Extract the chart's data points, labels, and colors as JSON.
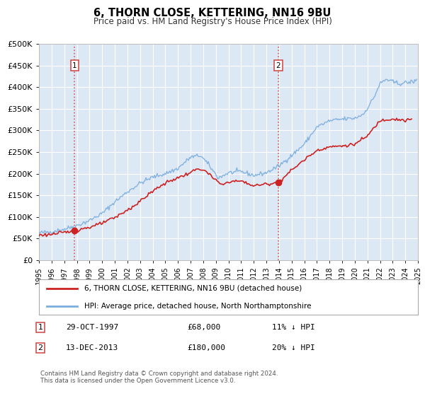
{
  "title": "6, THORN CLOSE, KETTERING, NN16 9BU",
  "subtitle": "Price paid vs. HM Land Registry's House Price Index (HPI)",
  "legend_line1": "6, THORN CLOSE, KETTERING, NN16 9BU (detached house)",
  "legend_line2": "HPI: Average price, detached house, North Northamptonshire",
  "annotation1_label": "1",
  "annotation1_date": "29-OCT-1997",
  "annotation1_price": "£68,000",
  "annotation1_hpi": "11% ↓ HPI",
  "annotation2_label": "2",
  "annotation2_date": "13-DEC-2013",
  "annotation2_price": "£180,000",
  "annotation2_hpi": "20% ↓ HPI",
  "copyright": "Contains HM Land Registry data © Crown copyright and database right 2024.\nThis data is licensed under the Open Government Licence v3.0.",
  "hpi_color": "#7aadde",
  "price_color": "#cc2222",
  "vline_color": "#cc4444",
  "dot_color": "#cc2222",
  "plot_bg_color": "#dde8f5",
  "grid_color": "#ffffff",
  "ylim_min": 0,
  "ylim_max": 500000,
  "xmin_year": 1995,
  "xmax_year": 2025,
  "transaction1_year": 1997.83,
  "transaction1_value": 68000,
  "transaction2_year": 2013.95,
  "transaction2_value": 180000,
  "yticks": [
    0,
    50000,
    100000,
    150000,
    200000,
    250000,
    300000,
    350000,
    400000,
    450000,
    500000
  ],
  "xticks": [
    1995,
    1996,
    1997,
    1998,
    1999,
    2000,
    2001,
    2002,
    2003,
    2004,
    2005,
    2006,
    2007,
    2008,
    2009,
    2010,
    2011,
    2012,
    2013,
    2014,
    2015,
    2016,
    2017,
    2018,
    2019,
    2020,
    2021,
    2022,
    2023,
    2024,
    2025
  ]
}
